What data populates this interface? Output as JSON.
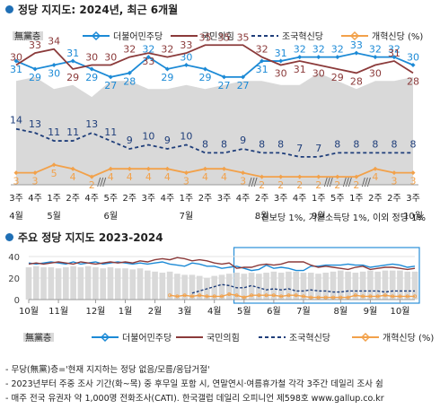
{
  "title_main": "정당 지지도: 2024년, 최근 6개월",
  "title_sub": "주요 정당 지지도 2023-2024",
  "legend": [
    {
      "label": "無黨층",
      "color": "#d9d9d9",
      "style": "area"
    },
    {
      "label": "더불어민주당",
      "color": "#1c8ad6",
      "style": "solid"
    },
    {
      "label": "국민의힘",
      "color": "#8b3a3a",
      "style": "solid"
    },
    {
      "label": "조국혁신당",
      "color": "#1f3e7a",
      "style": "dashed"
    },
    {
      "label": "개혁신당 (%)",
      "color": "#f2a14a",
      "style": "solid"
    }
  ],
  "note": "- 진보당 1%, 기본소득당 1%, 이외 정당 1%",
  "footnotes": [
    "- 무당(無黨)층='현재 지지하는 정당 없음/모름/응답거절'",
    "- 2023년부터 주중 조사 기간(화~목) 중 후무일 포함 시, 연말연시·여름휴가철 각각 3주간 데일리 조사 쉼",
    "- 매주 전국 유권자 약 1,000명 전화조사(CATI). 한국갤럽 데일리 오피니언 제598호 www.gallup.co.kr"
  ],
  "chart_data": [
    {
      "type": "line",
      "title": "정당 지지도: 2024년, 최근 6개월",
      "categories": [
        "3주",
        "4주",
        "1주",
        "2주",
        "4주",
        "5주",
        "2주",
        "3주",
        "4주",
        "1주",
        "2주",
        "3주",
        "4주",
        "2주",
        "3주",
        "4주",
        "1주",
        "5주",
        "1주",
        "2주",
        "2주",
        "3주"
      ],
      "month_labels": [
        {
          "label": "4월",
          "at": 0
        },
        {
          "label": "5월",
          "at": 2
        },
        {
          "label": "6월",
          "at": 5
        },
        {
          "label": "7월",
          "at": 9
        },
        {
          "label": "8월",
          "at": 13
        },
        {
          "label": "9월",
          "at": 16
        },
        {
          "label": "10월",
          "at": 21
        }
      ],
      "break_after": [
        4,
        12,
        16,
        17,
        18
      ],
      "ylim": [
        0,
        40
      ],
      "series": [
        {
          "name": "無黨층",
          "type": "area",
          "color": "#d9d9d9",
          "values": [
            26,
            27,
            24,
            25,
            22,
            26,
            26,
            24,
            24,
            25,
            24,
            25,
            26,
            26,
            25,
            25,
            28,
            26,
            24,
            26,
            26,
            27
          ]
        },
        {
          "name": "더불어민주당",
          "color": "#1c8ad6",
          "values": [
            31,
            29,
            30,
            31,
            29,
            27,
            28,
            32,
            29,
            30,
            29,
            27,
            27,
            31,
            31,
            32,
            32,
            32,
            33,
            32,
            32,
            30
          ]
        },
        {
          "name": "국민의힘",
          "color": "#8b3a3a",
          "values": [
            30,
            33,
            34,
            29,
            30,
            30,
            32,
            33,
            32,
            33,
            35,
            35,
            35,
            32,
            30,
            31,
            30,
            29,
            28,
            30,
            31,
            28
          ]
        },
        {
          "name": "조국혁신당",
          "color": "#1f3e7a",
          "values": [
            14,
            13,
            11,
            11,
            13,
            11,
            9,
            10,
            9,
            10,
            8,
            8,
            9,
            8,
            8,
            7,
            7,
            8,
            8,
            8,
            8,
            8
          ]
        },
        {
          "name": "개혁신당 (%)",
          "color": "#f2a14a",
          "values": [
            3,
            3,
            5,
            4,
            2,
            4,
            4,
            4,
            4,
            3,
            4,
            4,
            3,
            2,
            2,
            2,
            2,
            2,
            2,
            4,
            3,
            3
          ]
        }
      ],
      "label_offsets": {
        "더불어민주당": [
          1,
          1,
          1,
          -1,
          1,
          1,
          1,
          -1,
          1,
          -1,
          1,
          1,
          1,
          1,
          -1,
          -1,
          -1,
          -1,
          -1,
          -1,
          -1,
          -1
        ],
        "국민의힘": [
          -1,
          -1,
          -1,
          1,
          -1,
          -1,
          -1,
          1,
          -1,
          -1,
          -1,
          -1,
          -1,
          -1,
          1,
          1,
          1,
          1,
          1,
          1,
          -1,
          1
        ]
      }
    },
    {
      "type": "line",
      "title": "주요 정당 지지도 2023-2024",
      "month_labels": [
        {
          "label": "10월",
          "at": 0
        },
        {
          "label": "11월",
          "at": 4
        },
        {
          "label": "12월",
          "at": 9
        },
        {
          "label": "1월",
          "at": 13
        },
        {
          "label": "2월",
          "at": 17
        },
        {
          "label": "3월",
          "at": 21
        },
        {
          "label": "4월",
          "at": 25
        },
        {
          "label": "5월",
          "at": 29
        },
        {
          "label": "6월",
          "at": 33
        },
        {
          "label": "7월",
          "at": 37
        },
        {
          "label": "8월",
          "at": 42
        },
        {
          "label": "9월",
          "at": 46
        },
        {
          "label": "10월",
          "at": 50
        }
      ],
      "ylim": [
        0,
        40
      ],
      "yticks": [
        0,
        20,
        40
      ],
      "series": [
        {
          "name": "無黨층",
          "values": [
            30,
            31,
            30,
            30,
            29,
            30,
            31,
            30,
            31,
            30,
            29,
            30,
            29,
            29,
            28,
            29,
            27,
            26,
            25,
            26,
            24,
            23,
            23,
            22,
            20,
            22,
            23,
            24,
            25,
            24,
            25,
            24,
            25,
            26,
            25,
            26,
            26,
            25,
            25,
            24,
            25,
            26,
            27,
            26,
            25,
            26,
            27,
            26,
            27,
            27,
            27,
            26,
            26
          ]
        },
        {
          "name": "더불어민주당",
          "values": [
            34,
            33,
            34,
            35,
            34,
            33,
            35,
            33,
            34,
            35,
            33,
            34,
            35,
            34,
            33,
            34,
            33,
            34,
            35,
            33,
            32,
            31,
            34,
            33,
            31,
            31,
            29,
            30,
            31,
            29,
            27,
            28,
            32,
            29,
            30,
            29,
            27,
            27,
            31,
            31,
            32,
            32,
            32,
            33,
            32,
            32,
            30,
            31,
            32,
            33,
            32,
            30,
            31
          ]
        },
        {
          "name": "국민의힘",
          "values": [
            33,
            34,
            33,
            34,
            35,
            34,
            33,
            35,
            34,
            33,
            34,
            35,
            34,
            35,
            34,
            36,
            35,
            37,
            38,
            37,
            39,
            38,
            36,
            37,
            36,
            34,
            33,
            34,
            29,
            30,
            30,
            32,
            33,
            32,
            33,
            35,
            35,
            35,
            32,
            30,
            31,
            30,
            29,
            28,
            30,
            31,
            28,
            29,
            30,
            30,
            29,
            28,
            29
          ]
        },
        {
          "name": "조국혁신당",
          "values": [
            null,
            null,
            null,
            null,
            null,
            null,
            null,
            null,
            null,
            null,
            null,
            null,
            null,
            null,
            null,
            null,
            null,
            null,
            null,
            null,
            null,
            null,
            6,
            8,
            10,
            12,
            14,
            13,
            11,
            11,
            13,
            11,
            9,
            10,
            9,
            10,
            8,
            8,
            9,
            8,
            8,
            7,
            7,
            8,
            8,
            8,
            8,
            8,
            7,
            8,
            8,
            8,
            8
          ]
        },
        {
          "name": "개혁신당 (%)",
          "values": [
            null,
            null,
            null,
            null,
            null,
            null,
            null,
            null,
            null,
            null,
            null,
            null,
            null,
            null,
            null,
            null,
            null,
            null,
            null,
            4,
            3,
            4,
            3,
            4,
            3,
            3,
            3,
            5,
            4,
            2,
            4,
            4,
            4,
            4,
            3,
            4,
            4,
            3,
            2,
            2,
            2,
            2,
            2,
            2,
            4,
            3,
            3,
            3,
            4,
            3,
            3,
            3,
            3
          ]
        }
      ]
    }
  ]
}
